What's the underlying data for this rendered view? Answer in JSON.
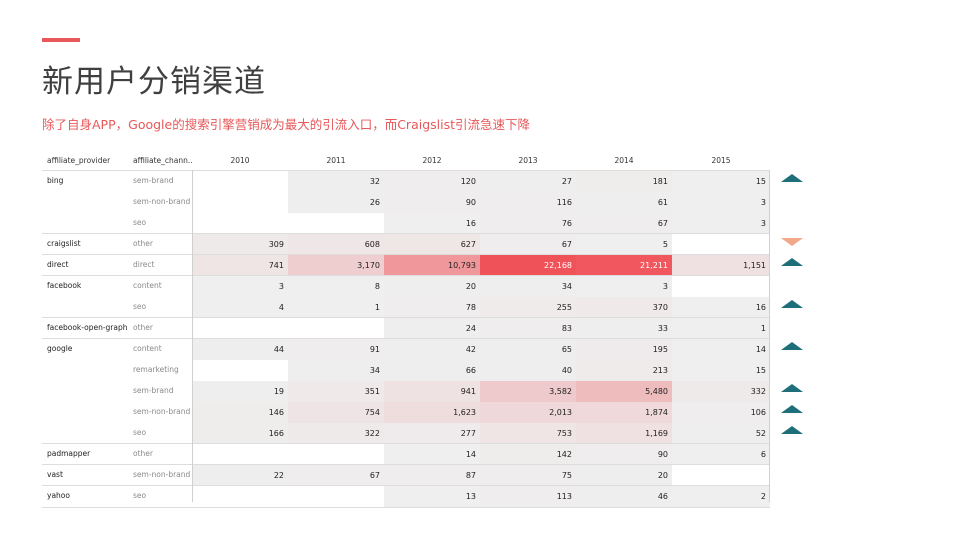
{
  "page": {
    "title": "新用户分销渠道",
    "subtitle": "除了自身APP，Google的搜索引擎营销成为最大的引流入口，而Craigslist引流急速下降"
  },
  "colors": {
    "accent": "#e8585a",
    "up_arrow": "#1f6f7a",
    "down_arrow": "#f2a98a"
  },
  "chart_data": {
    "type": "table",
    "columns": [
      "affiliate_provider",
      "affiliate_chann..",
      "2010",
      "2011",
      "2012",
      "2013",
      "2014",
      "2015"
    ],
    "years": [
      "2010",
      "2011",
      "2012",
      "2013",
      "2014",
      "2015"
    ],
    "rows": [
      {
        "provider": "bing",
        "channel": "sem-brand",
        "values": [
          null,
          32,
          120,
          27,
          181,
          15
        ],
        "trend": "up"
      },
      {
        "provider": "",
        "channel": "sem-non-brand",
        "values": [
          null,
          26,
          90,
          116,
          61,
          3
        ],
        "trend": ""
      },
      {
        "provider": "",
        "channel": "seo",
        "values": [
          null,
          null,
          16,
          76,
          67,
          3
        ],
        "trend": ""
      },
      {
        "provider": "craigslist",
        "channel": "other",
        "values": [
          309,
          608,
          627,
          67,
          5,
          null
        ],
        "trend": "down"
      },
      {
        "provider": "direct",
        "channel": "direct",
        "values": [
          741,
          3170,
          10793,
          22168,
          21211,
          1151
        ],
        "trend": "up"
      },
      {
        "provider": "facebook",
        "channel": "content",
        "values": [
          3,
          8,
          20,
          34,
          3,
          null
        ],
        "trend": ""
      },
      {
        "provider": "",
        "channel": "seo",
        "values": [
          4,
          1,
          78,
          255,
          370,
          16
        ],
        "trend": "up"
      },
      {
        "provider": "facebook-open-graph",
        "channel": "other",
        "values": [
          null,
          null,
          24,
          83,
          33,
          1
        ],
        "trend": ""
      },
      {
        "provider": "google",
        "channel": "content",
        "values": [
          44,
          91,
          42,
          65,
          195,
          14
        ],
        "trend": "up"
      },
      {
        "provider": "",
        "channel": "remarketing",
        "values": [
          null,
          34,
          66,
          40,
          213,
          15
        ],
        "trend": ""
      },
      {
        "provider": "",
        "channel": "sem-brand",
        "values": [
          19,
          351,
          941,
          3582,
          5480,
          332
        ],
        "trend": "up"
      },
      {
        "provider": "",
        "channel": "sem-non-brand",
        "values": [
          146,
          754,
          1623,
          2013,
          1874,
          106
        ],
        "trend": "up"
      },
      {
        "provider": "",
        "channel": "seo",
        "values": [
          166,
          322,
          277,
          753,
          1169,
          52
        ],
        "trend": "up"
      },
      {
        "provider": "padmapper",
        "channel": "other",
        "values": [
          null,
          null,
          14,
          142,
          90,
          6
        ],
        "trend": ""
      },
      {
        "provider": "vast",
        "channel": "sem-non-brand",
        "values": [
          22,
          67,
          87,
          75,
          20,
          null
        ],
        "trend": ""
      },
      {
        "provider": "yahoo",
        "channel": "seo",
        "values": [
          null,
          null,
          13,
          113,
          46,
          2
        ],
        "trend": ""
      }
    ],
    "color_scale": {
      "low": "#efefef",
      "high": "#f0525a",
      "max": 22168
    }
  }
}
